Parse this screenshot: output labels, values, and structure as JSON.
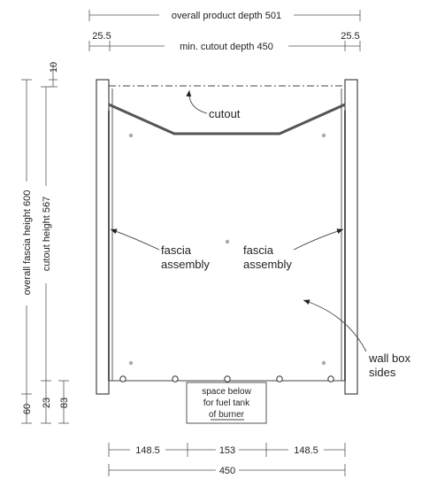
{
  "dimensions": {
    "overall_product_depth": "overall product depth 501",
    "side_left": "25.5",
    "side_right": "25.5",
    "min_cutout_depth": "min. cutout depth 450",
    "top_offset": "10",
    "overall_fascia_height": "overall fascia height 600",
    "cutout_height": "cutout height 567",
    "bottom_60": "60",
    "bottom_23": "23",
    "bottom_83": "83",
    "bottom_left": "148.5",
    "bottom_middle": "153",
    "bottom_right": "148.5",
    "bottom_total": "450"
  },
  "labels": {
    "cutout": "cutout",
    "fascia_assembly_left_1": "fascia",
    "fascia_assembly_left_2": "assembly",
    "fascia_assembly_right_1": "fascia",
    "fascia_assembly_right_2": "assembly",
    "wall_box_1": "wall box",
    "wall_box_2": "sides",
    "space_below_1": "space below",
    "space_below_2": "for fuel tank",
    "space_below_3": "of burner"
  }
}
